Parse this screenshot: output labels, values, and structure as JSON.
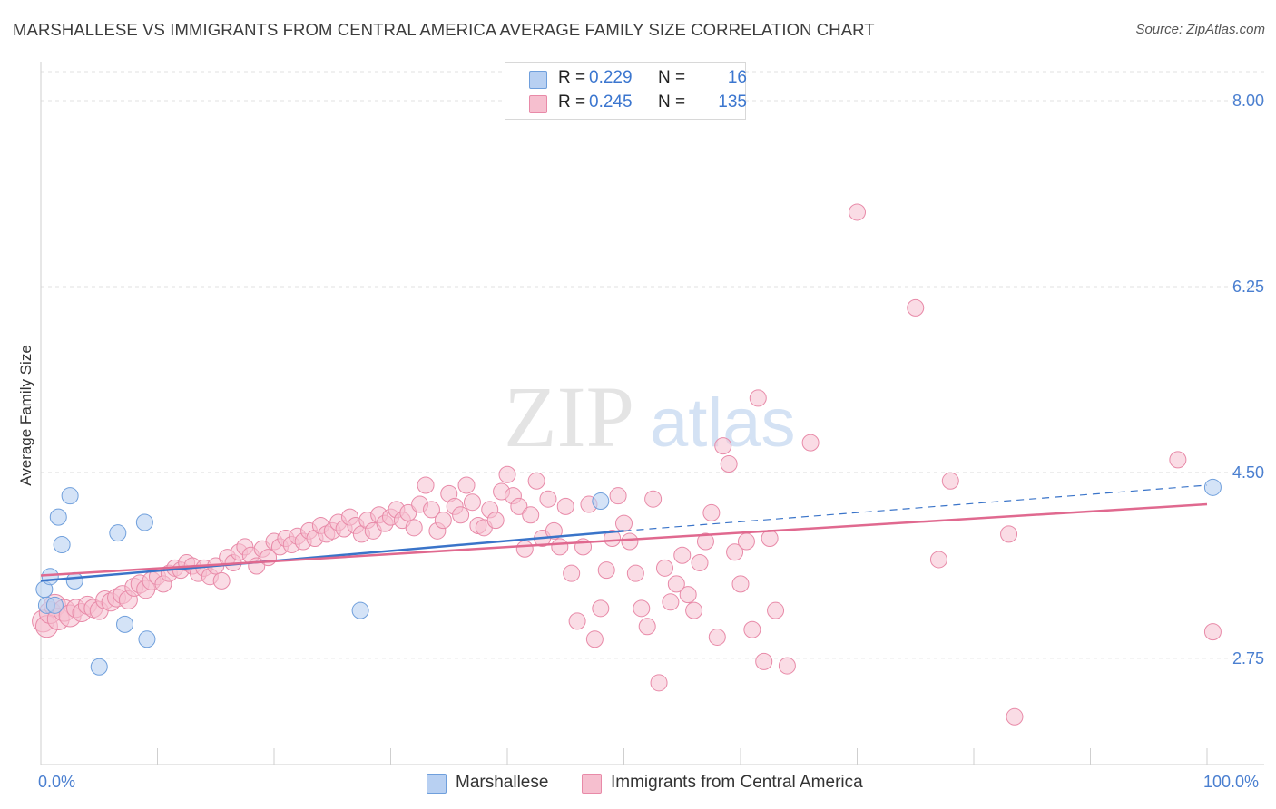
{
  "title": "MARSHALLESE VS IMMIGRANTS FROM CENTRAL AMERICA AVERAGE FAMILY SIZE CORRELATION CHART",
  "source": "Source: ZipAtlas.com",
  "watermark": {
    "zip": "ZIP",
    "atlas": "atlas"
  },
  "legend": [
    {
      "r_label": "R =",
      "r_value": "0.229",
      "n_label": "N =",
      "n_value": "16"
    },
    {
      "r_label": "R =",
      "r_value": "0.245",
      "n_label": "N =",
      "n_value": "135"
    }
  ],
  "colors": {
    "blue_fill": "#b8d0f2",
    "blue_stroke": "#6f9fdc",
    "blue_line": "#3a74c9",
    "pink_fill": "#f6bfcf",
    "pink_stroke": "#e88aa8",
    "pink_line": "#e0698f",
    "grid": "#e2e2e2",
    "axis_text": "#4a7fd0"
  },
  "chart_data": {
    "type": "scatter",
    "title": "MARSHALLESE VS IMMIGRANTS FROM CENTRAL AMERICA AVERAGE FAMILY SIZE CORRELATION CHART",
    "xlabel": "",
    "ylabel": "Average Family Size",
    "xlim": [
      0,
      100
    ],
    "ylim": [
      1.75,
      8.35
    ],
    "yticks": [
      2.75,
      4.5,
      6.25,
      8.0
    ],
    "ytick_labels": [
      "2.75",
      "4.50",
      "6.25",
      "8.00"
    ],
    "xtick_labels": [
      "0.0%",
      "100.0%"
    ],
    "grid": true,
    "legend_position": "top-center",
    "series": [
      {
        "name": "Marshallese",
        "r": 0.229,
        "n": 16,
        "trend": {
          "x": [
            0,
            50
          ],
          "y": [
            3.48,
            3.95
          ],
          "dashed_to": [
            100,
            4.38
          ]
        },
        "points": [
          [
            0.3,
            3.4
          ],
          [
            0.5,
            3.25
          ],
          [
            0.8,
            3.52
          ],
          [
            1.2,
            3.25
          ],
          [
            1.5,
            4.08
          ],
          [
            1.8,
            3.82
          ],
          [
            2.5,
            4.28
          ],
          [
            2.9,
            3.48
          ],
          [
            5.0,
            2.67
          ],
          [
            6.6,
            3.93
          ],
          [
            7.2,
            3.07
          ],
          [
            8.9,
            4.03
          ],
          [
            9.1,
            2.93
          ],
          [
            27.4,
            3.2
          ],
          [
            48.0,
            4.23
          ],
          [
            100.5,
            4.36
          ]
        ]
      },
      {
        "name": "Immigrants from Central America",
        "r": 0.245,
        "n": 135,
        "trend": {
          "x": [
            0,
            100
          ],
          "y": [
            3.53,
            4.2
          ]
        },
        "points": [
          [
            0.2,
            3.1
          ],
          [
            0.5,
            3.05
          ],
          [
            0.8,
            3.18
          ],
          [
            1.2,
            3.25
          ],
          [
            1.5,
            3.12
          ],
          [
            2.0,
            3.2
          ],
          [
            2.5,
            3.15
          ],
          [
            3.0,
            3.22
          ],
          [
            3.5,
            3.18
          ],
          [
            4.0,
            3.25
          ],
          [
            4.5,
            3.22
          ],
          [
            5.0,
            3.2
          ],
          [
            5.5,
            3.3
          ],
          [
            6.0,
            3.28
          ],
          [
            6.5,
            3.32
          ],
          [
            7.0,
            3.35
          ],
          [
            7.5,
            3.3
          ],
          [
            8.0,
            3.42
          ],
          [
            8.5,
            3.45
          ],
          [
            9.0,
            3.4
          ],
          [
            9.5,
            3.48
          ],
          [
            10.0,
            3.52
          ],
          [
            10.5,
            3.45
          ],
          [
            11.0,
            3.55
          ],
          [
            11.5,
            3.6
          ],
          [
            12.0,
            3.58
          ],
          [
            12.5,
            3.65
          ],
          [
            13.0,
            3.62
          ],
          [
            13.5,
            3.55
          ],
          [
            14.0,
            3.6
          ],
          [
            14.5,
            3.52
          ],
          [
            15.0,
            3.62
          ],
          [
            15.5,
            3.48
          ],
          [
            16.0,
            3.7
          ],
          [
            16.5,
            3.65
          ],
          [
            17.0,
            3.75
          ],
          [
            17.5,
            3.8
          ],
          [
            18.0,
            3.72
          ],
          [
            18.5,
            3.62
          ],
          [
            19.0,
            3.78
          ],
          [
            19.5,
            3.7
          ],
          [
            20.0,
            3.85
          ],
          [
            20.5,
            3.8
          ],
          [
            21.0,
            3.88
          ],
          [
            21.5,
            3.82
          ],
          [
            22.0,
            3.9
          ],
          [
            22.5,
            3.85
          ],
          [
            23.0,
            3.95
          ],
          [
            23.5,
            3.88
          ],
          [
            24.0,
            4.0
          ],
          [
            24.5,
            3.92
          ],
          [
            25.0,
            3.95
          ],
          [
            25.5,
            4.03
          ],
          [
            26.0,
            3.97
          ],
          [
            26.5,
            4.08
          ],
          [
            27.0,
            4.0
          ],
          [
            27.5,
            3.92
          ],
          [
            28.0,
            4.05
          ],
          [
            28.5,
            3.95
          ],
          [
            29.0,
            4.1
          ],
          [
            29.5,
            4.02
          ],
          [
            30.0,
            4.08
          ],
          [
            30.5,
            4.15
          ],
          [
            31.0,
            4.05
          ],
          [
            31.5,
            4.12
          ],
          [
            32.0,
            3.98
          ],
          [
            32.5,
            4.2
          ],
          [
            33.0,
            4.38
          ],
          [
            33.5,
            4.15
          ],
          [
            34.0,
            3.95
          ],
          [
            34.5,
            4.05
          ],
          [
            35.0,
            4.3
          ],
          [
            35.5,
            4.18
          ],
          [
            36.0,
            4.1
          ],
          [
            36.5,
            4.38
          ],
          [
            37.0,
            4.22
          ],
          [
            37.5,
            4.0
          ],
          [
            38.0,
            3.98
          ],
          [
            38.5,
            4.15
          ],
          [
            39.0,
            4.05
          ],
          [
            39.5,
            4.32
          ],
          [
            40.0,
            4.48
          ],
          [
            40.5,
            4.28
          ],
          [
            41.0,
            4.18
          ],
          [
            41.5,
            3.78
          ],
          [
            42.0,
            4.1
          ],
          [
            42.5,
            4.42
          ],
          [
            43.0,
            3.88
          ],
          [
            43.5,
            4.25
          ],
          [
            44.0,
            3.95
          ],
          [
            44.5,
            3.8
          ],
          [
            45.0,
            4.18
          ],
          [
            45.5,
            3.55
          ],
          [
            46.0,
            3.1
          ],
          [
            46.5,
            3.8
          ],
          [
            47.0,
            4.2
          ],
          [
            47.5,
            2.93
          ],
          [
            48.0,
            3.22
          ],
          [
            48.5,
            3.58
          ],
          [
            49.0,
            3.88
          ],
          [
            49.5,
            4.28
          ],
          [
            50.0,
            4.02
          ],
          [
            50.5,
            3.85
          ],
          [
            51.0,
            3.55
          ],
          [
            51.5,
            3.22
          ],
          [
            52.0,
            3.05
          ],
          [
            52.5,
            4.25
          ],
          [
            53.0,
            2.52
          ],
          [
            53.5,
            3.6
          ],
          [
            54.0,
            3.28
          ],
          [
            54.5,
            3.45
          ],
          [
            55.0,
            3.72
          ],
          [
            55.5,
            3.35
          ],
          [
            56.0,
            3.2
          ],
          [
            56.5,
            3.65
          ],
          [
            57.0,
            3.85
          ],
          [
            57.5,
            4.12
          ],
          [
            58.0,
            2.95
          ],
          [
            58.5,
            4.75
          ],
          [
            59.0,
            4.58
          ],
          [
            59.5,
            3.75
          ],
          [
            60.0,
            3.45
          ],
          [
            60.5,
            3.85
          ],
          [
            61.0,
            3.02
          ],
          [
            61.5,
            5.2
          ],
          [
            62.0,
            2.72
          ],
          [
            62.5,
            3.88
          ],
          [
            63.0,
            3.2
          ],
          [
            64.0,
            2.68
          ],
          [
            66.0,
            4.78
          ],
          [
            70.0,
            6.95
          ],
          [
            75.0,
            6.05
          ],
          [
            77.0,
            3.68
          ],
          [
            78.0,
            4.42
          ],
          [
            83.0,
            3.92
          ],
          [
            83.5,
            2.2
          ],
          [
            97.5,
            4.62
          ],
          [
            100.5,
            3.0
          ]
        ]
      }
    ]
  },
  "bottom_legend": [
    {
      "label": "Marshallese"
    },
    {
      "label": "Immigrants from Central America"
    }
  ]
}
